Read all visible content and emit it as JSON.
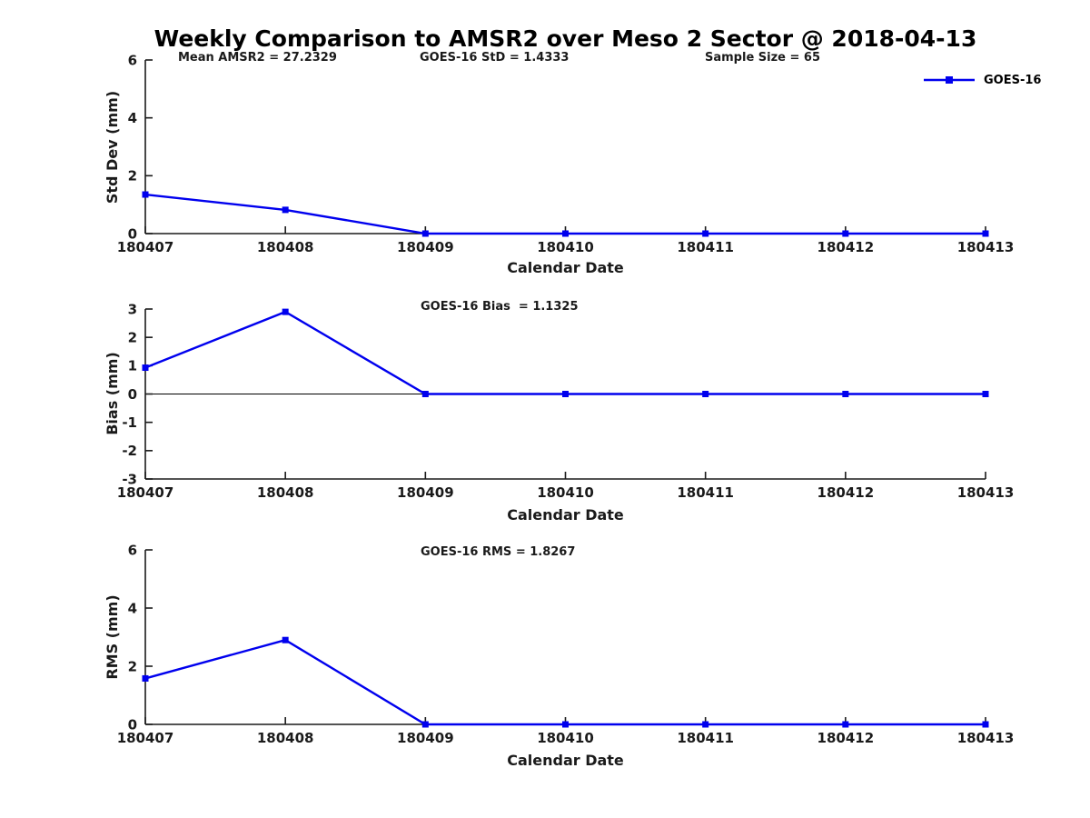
{
  "title": "Weekly Comparison to AMSR2 over Meso 2 Sector @ 2018-04-13",
  "legend": {
    "label": "GOES-16",
    "color": "#0000ee"
  },
  "chart_data": [
    {
      "type": "line",
      "name": "std-dev-panel",
      "ylabel": "Std Dev (mm)",
      "xlabel": "Calendar Date",
      "ylim": [
        0,
        6
      ],
      "yticks": [
        0,
        2,
        4,
        6
      ],
      "categories": [
        "180407",
        "180408",
        "180409",
        "180410",
        "180411",
        "180412",
        "180413"
      ],
      "series": [
        {
          "name": "GOES-16",
          "color": "#0000ee",
          "marker": "square",
          "values": [
            1.35,
            0.82,
            0,
            0,
            0,
            0,
            0
          ]
        }
      ],
      "annotations": [
        {
          "text": "Mean AMSR2 = 27.2329"
        },
        {
          "text": "GOES-16 StD = 1.4333"
        },
        {
          "text": "Sample Size = 65"
        }
      ],
      "zero_line": false,
      "legend_position": "outside-upper-right",
      "grid": false
    },
    {
      "type": "line",
      "name": "bias-panel",
      "ylabel": "Bias (mm)",
      "xlabel": "Calendar Date",
      "ylim": [
        -3,
        3
      ],
      "yticks": [
        -3,
        -2,
        -1,
        0,
        1,
        2,
        3
      ],
      "categories": [
        "180407",
        "180408",
        "180409",
        "180410",
        "180411",
        "180412",
        "180413"
      ],
      "series": [
        {
          "name": "GOES-16",
          "color": "#0000ee",
          "marker": "square",
          "values": [
            0.93,
            2.9,
            0,
            0,
            0,
            0,
            0
          ]
        }
      ],
      "annotations": [
        {
          "text": "GOES-16 Bias  = 1.1325"
        }
      ],
      "zero_line": true,
      "grid": false
    },
    {
      "type": "line",
      "name": "rms-panel",
      "ylabel": "RMS (mm)",
      "xlabel": "Calendar Date",
      "ylim": [
        0,
        6
      ],
      "yticks": [
        0,
        2,
        4,
        6
      ],
      "categories": [
        "180407",
        "180408",
        "180409",
        "180410",
        "180411",
        "180412",
        "180413"
      ],
      "series": [
        {
          "name": "GOES-16",
          "color": "#0000ee",
          "marker": "square",
          "values": [
            1.58,
            2.9,
            0,
            0,
            0,
            0,
            0
          ]
        }
      ],
      "annotations": [
        {
          "text": "GOES-16 RMS = 1.8267"
        }
      ],
      "zero_line": false,
      "grid": false
    }
  ]
}
